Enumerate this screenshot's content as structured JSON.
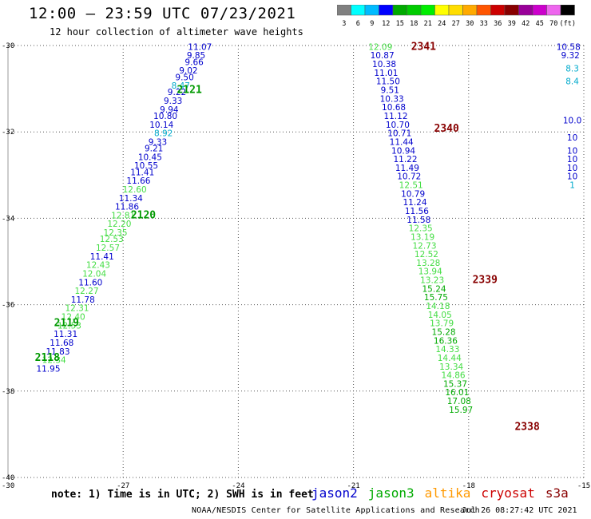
{
  "header": {
    "title": "12:00 — 23:59 UTC 07/23/2021",
    "subtitle": "12 hour collection of altimeter wave heights"
  },
  "color_scale": {
    "colors": [
      "#808080",
      "#00ffff",
      "#00bbff",
      "#0000ff",
      "#00aa00",
      "#00cc00",
      "#00ee00",
      "#ffff00",
      "#ffdd00",
      "#ffaa00",
      "#ff5500",
      "#cc0000",
      "#880000",
      "#990099",
      "#cc00cc",
      "#ee66ee",
      "#000000"
    ],
    "labels": [
      "3",
      "6",
      "9",
      "12",
      "15",
      "18",
      "21",
      "24",
      "27",
      "30",
      "33",
      "36",
      "39",
      "42",
      "45",
      "70",
      "(ft)"
    ]
  },
  "footer": {
    "note": "note: 1) Time is in UTC; 2) SWH is in feet",
    "satellites": [
      {
        "name": "jason2",
        "color": "#0000cc"
      },
      {
        "name": "jason3",
        "color": "#00aa00"
      },
      {
        "name": "altika",
        "color": "#ff9900"
      },
      {
        "name": "cryosat",
        "color": "#cc0000"
      },
      {
        "name": "s3a",
        "color": "#880000"
      }
    ],
    "credit": "NOAA/NESDIS Center for Satellite Applications and Research",
    "timestamp": "Jul 26 08:27:42 UTC 2021"
  },
  "chart_data": {
    "type": "scatter",
    "x_ticks": [
      "-27",
      "-24",
      "-21",
      "-18",
      "-15"
    ],
    "y_ticks": [
      "-30",
      "-32",
      "-34",
      "-36",
      "-38",
      "-40"
    ],
    "xlim": [
      -30,
      -15
    ],
    "ylim": [
      -40,
      -30
    ],
    "corner_label": "-30",
    "grid": true,
    "tracks": [
      {
        "label": "2121",
        "lon": -25.6,
        "lat": -31.1,
        "color": "#009900"
      },
      {
        "label": "2120",
        "lon": -26.8,
        "lat": -34.0,
        "color": "#009900"
      },
      {
        "label": "2119",
        "lon": -28.8,
        "lat": -36.5,
        "color": "#009900"
      },
      {
        "label": "2118",
        "lon": -29.3,
        "lat": -37.3,
        "color": "#009900"
      },
      {
        "label": "2341",
        "lon": -19.5,
        "lat": -30.1,
        "color": "#880000"
      },
      {
        "label": "2340",
        "lon": -18.9,
        "lat": -32.0,
        "color": "#880000"
      },
      {
        "label": "2339",
        "lon": -17.9,
        "lat": -35.5,
        "color": "#880000"
      },
      {
        "label": "2338",
        "lon": -16.8,
        "lat": -38.9,
        "color": "#880000"
      }
    ],
    "points": [
      {
        "lon": -25.0,
        "lat": -30.1,
        "v": "11.07"
      },
      {
        "lon": -25.1,
        "lat": -30.3,
        "v": "9.85"
      },
      {
        "lon": -25.15,
        "lat": -30.45,
        "v": "9.66"
      },
      {
        "lon": -25.3,
        "lat": -30.65,
        "v": "9.02"
      },
      {
        "lon": -25.4,
        "lat": -30.8,
        "v": "9.50"
      },
      {
        "lon": -25.5,
        "lat": -31.0,
        "v": "8.47"
      },
      {
        "lon": -25.6,
        "lat": -31.15,
        "v": "9.22"
      },
      {
        "lon": -25.7,
        "lat": -31.35,
        "v": "9.33"
      },
      {
        "lon": -25.8,
        "lat": -31.55,
        "v": "9.94"
      },
      {
        "lon": -25.9,
        "lat": -31.7,
        "v": "10.80"
      },
      {
        "lon": -26.0,
        "lat": -31.9,
        "v": "10.14"
      },
      {
        "lon": -25.95,
        "lat": -32.1,
        "v": "8.92"
      },
      {
        "lon": -26.1,
        "lat": -32.3,
        "v": "9.33"
      },
      {
        "lon": -26.2,
        "lat": -32.45,
        "v": "9.21"
      },
      {
        "lon": -26.3,
        "lat": -32.65,
        "v": "10.45"
      },
      {
        "lon": -26.4,
        "lat": -32.85,
        "v": "10.55"
      },
      {
        "lon": -26.5,
        "lat": -33.0,
        "v": "11.41"
      },
      {
        "lon": -26.6,
        "lat": -33.2,
        "v": "11.66"
      },
      {
        "lon": -26.7,
        "lat": -33.4,
        "v": "12.60"
      },
      {
        "lon": -26.8,
        "lat": -33.6,
        "v": "11.34"
      },
      {
        "lon": -26.9,
        "lat": -33.8,
        "v": "11.86"
      },
      {
        "lon": -27.0,
        "lat": -34.0,
        "v": "12.81"
      },
      {
        "lon": -27.1,
        "lat": -34.2,
        "v": "12.20"
      },
      {
        "lon": -27.2,
        "lat": -34.4,
        "v": "12.35"
      },
      {
        "lon": -27.3,
        "lat": -34.55,
        "v": "12.53"
      },
      {
        "lon": -27.4,
        "lat": -34.75,
        "v": "12.57"
      },
      {
        "lon": -27.55,
        "lat": -34.95,
        "v": "11.41"
      },
      {
        "lon": -27.65,
        "lat": -35.15,
        "v": "12.43"
      },
      {
        "lon": -27.75,
        "lat": -35.35,
        "v": "12.04"
      },
      {
        "lon": -27.85,
        "lat": -35.55,
        "v": "11.60"
      },
      {
        "lon": -27.95,
        "lat": -35.75,
        "v": "12.27"
      },
      {
        "lon": -28.05,
        "lat": -35.95,
        "v": "11.78"
      },
      {
        "lon": -28.2,
        "lat": -36.15,
        "v": "12.31"
      },
      {
        "lon": -28.3,
        "lat": -36.35,
        "v": "12.40"
      },
      {
        "lon": -28.4,
        "lat": -36.55,
        "v": "12.53"
      },
      {
        "lon": -28.5,
        "lat": -36.75,
        "v": "11.31"
      },
      {
        "lon": -28.6,
        "lat": -36.95,
        "v": "11.68"
      },
      {
        "lon": -28.7,
        "lat": -37.15,
        "v": "11.83"
      },
      {
        "lon": -28.8,
        "lat": -37.35,
        "v": "12.34"
      },
      {
        "lon": -28.95,
        "lat": -37.55,
        "v": "11.95"
      },
      {
        "lon": -20.3,
        "lat": -30.1,
        "v": "12.09"
      },
      {
        "lon": -20.25,
        "lat": -30.3,
        "v": "10.87"
      },
      {
        "lon": -20.2,
        "lat": -30.5,
        "v": "10.38"
      },
      {
        "lon": -20.15,
        "lat": -30.7,
        "v": "11.01"
      },
      {
        "lon": -20.1,
        "lat": -30.9,
        "v": "11.50"
      },
      {
        "lon": -20.05,
        "lat": -31.1,
        "v": "9.51"
      },
      {
        "lon": -20.0,
        "lat": -31.3,
        "v": "10.33"
      },
      {
        "lon": -19.95,
        "lat": -31.5,
        "v": "10.68"
      },
      {
        "lon": -19.9,
        "lat": -31.7,
        "v": "11.12"
      },
      {
        "lon": -19.85,
        "lat": -31.9,
        "v": "10.70"
      },
      {
        "lon": -19.8,
        "lat": -32.1,
        "v": "10.71"
      },
      {
        "lon": -19.75,
        "lat": -32.3,
        "v": "11.44"
      },
      {
        "lon": -19.7,
        "lat": -32.5,
        "v": "10.94"
      },
      {
        "lon": -19.65,
        "lat": -32.7,
        "v": "11.22"
      },
      {
        "lon": -19.6,
        "lat": -32.9,
        "v": "11.49"
      },
      {
        "lon": -19.55,
        "lat": -33.1,
        "v": "10.72"
      },
      {
        "lon": -19.5,
        "lat": -33.3,
        "v": "12.51"
      },
      {
        "lon": -19.45,
        "lat": -33.5,
        "v": "10.79"
      },
      {
        "lon": -19.4,
        "lat": -33.7,
        "v": "11.24"
      },
      {
        "lon": -19.35,
        "lat": -33.9,
        "v": "11.56"
      },
      {
        "lon": -19.3,
        "lat": -34.1,
        "v": "11.58"
      },
      {
        "lon": -19.25,
        "lat": -34.3,
        "v": "12.35"
      },
      {
        "lon": -19.2,
        "lat": -34.5,
        "v": "13.19"
      },
      {
        "lon": -19.15,
        "lat": -34.7,
        "v": "12.73"
      },
      {
        "lon": -19.1,
        "lat": -34.9,
        "v": "12.52"
      },
      {
        "lon": -19.05,
        "lat": -35.1,
        "v": "13.28"
      },
      {
        "lon": -19.0,
        "lat": -35.3,
        "v": "13.94"
      },
      {
        "lon": -18.95,
        "lat": -35.5,
        "v": "13.23"
      },
      {
        "lon": -18.9,
        "lat": -35.7,
        "v": "15.24"
      },
      {
        "lon": -18.85,
        "lat": -35.9,
        "v": "15.75"
      },
      {
        "lon": -18.8,
        "lat": -36.1,
        "v": "14.18"
      },
      {
        "lon": -18.75,
        "lat": -36.3,
        "v": "14.05"
      },
      {
        "lon": -18.7,
        "lat": -36.5,
        "v": "13.79"
      },
      {
        "lon": -18.65,
        "lat": -36.7,
        "v": "15.28"
      },
      {
        "lon": -18.6,
        "lat": -36.9,
        "v": "16.36"
      },
      {
        "lon": -18.55,
        "lat": -37.1,
        "v": "14.33"
      },
      {
        "lon": -18.5,
        "lat": -37.3,
        "v": "14.44"
      },
      {
        "lon": -18.45,
        "lat": -37.5,
        "v": "13.34"
      },
      {
        "lon": -18.4,
        "lat": -37.7,
        "v": "14.86"
      },
      {
        "lon": -18.35,
        "lat": -37.9,
        "v": "15.37"
      },
      {
        "lon": -18.3,
        "lat": -38.1,
        "v": "16.01"
      },
      {
        "lon": -18.25,
        "lat": -38.3,
        "v": "17.08"
      },
      {
        "lon": -18.2,
        "lat": -38.5,
        "v": "15.97"
      },
      {
        "lon": -15.4,
        "lat": -30.1,
        "v": "10.58"
      },
      {
        "lon": -15.35,
        "lat": -30.3,
        "v": "9.32"
      },
      {
        "lon": -15.3,
        "lat": -30.6,
        "v": "8.3"
      },
      {
        "lon": -15.3,
        "lat": -30.9,
        "v": "8.4"
      },
      {
        "lon": -15.3,
        "lat": -31.8,
        "v": "10.0"
      },
      {
        "lon": -15.3,
        "lat": -32.2,
        "v": "10"
      },
      {
        "lon": -15.3,
        "lat": -32.5,
        "v": "10"
      },
      {
        "lon": -15.3,
        "lat": -32.7,
        "v": "10"
      },
      {
        "lon": -15.3,
        "lat": -32.9,
        "v": "10"
      },
      {
        "lon": -15.3,
        "lat": -33.1,
        "v": "10"
      },
      {
        "lon": -15.3,
        "lat": -33.3,
        "v": "1"
      }
    ]
  }
}
